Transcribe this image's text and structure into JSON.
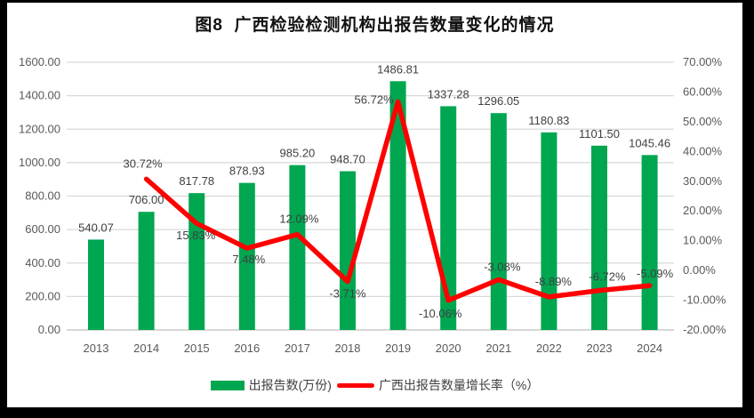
{
  "title": "图8  广西检验检测机构出报告数量变化的情况",
  "colors": {
    "bar": "#00A650",
    "line": "#FF0000",
    "grid": "#D9D9D9",
    "axis_line": "#BFBFBF",
    "axis_text": "#595959",
    "label_text": "#404040",
    "card_bg": "#FFFFFF",
    "frame_bg": "#000000"
  },
  "chart_data": {
    "type": "bar+line combo",
    "title": "图8  广西检验检测机构出报告数量变化的情况",
    "categories": [
      "2013",
      "2014",
      "2015",
      "2016",
      "2017",
      "2018",
      "2019",
      "2020",
      "2021",
      "2022",
      "2023",
      "2024"
    ],
    "series": [
      {
        "name": "出报告数(万份)",
        "type": "bar",
        "axis": "left",
        "values": [
          540.07,
          706.0,
          817.78,
          878.93,
          985.2,
          948.7,
          1486.81,
          1337.28,
          1296.05,
          1180.83,
          1101.5,
          1045.46
        ],
        "labels": [
          "540.07",
          "706.00",
          "817.78",
          "878.93",
          "985.20",
          "948.70",
          "1486.81",
          "1337.28",
          "1296.05",
          "1180.83",
          "1101.50",
          "1045.46"
        ]
      },
      {
        "name": "广西出报告数量增长率（%）",
        "type": "line",
        "axis": "right",
        "values": [
          null,
          30.72,
          15.83,
          7.48,
          12.09,
          -3.71,
          56.72,
          -10.06,
          -3.08,
          -8.89,
          -6.72,
          -5.09
        ],
        "labels": [
          "",
          "30.72%",
          "15.83%",
          "7.48%",
          "12.09%",
          "-3.71%",
          "56.72%",
          "-10.06%",
          "-3.08%",
          "-8.89%",
          "-6.72%",
          "-5.09%"
        ]
      }
    ],
    "left_axis": {
      "min": 0,
      "max": 1600,
      "step": 200,
      "tick_labels": [
        "0.00",
        "200.00",
        "400.00",
        "600.00",
        "800.00",
        "1000.00",
        "1200.00",
        "1400.00",
        "1600.00"
      ]
    },
    "right_axis": {
      "min": -20,
      "max": 70,
      "step": 10,
      "tick_labels": [
        "-20.00%",
        "-10.00%",
        "0.00%",
        "10.00%",
        "20.00%",
        "30.00%",
        "40.00%",
        "50.00%",
        "60.00%",
        "70.00%"
      ]
    },
    "legend_position": "bottom",
    "grid": "horizontal"
  }
}
